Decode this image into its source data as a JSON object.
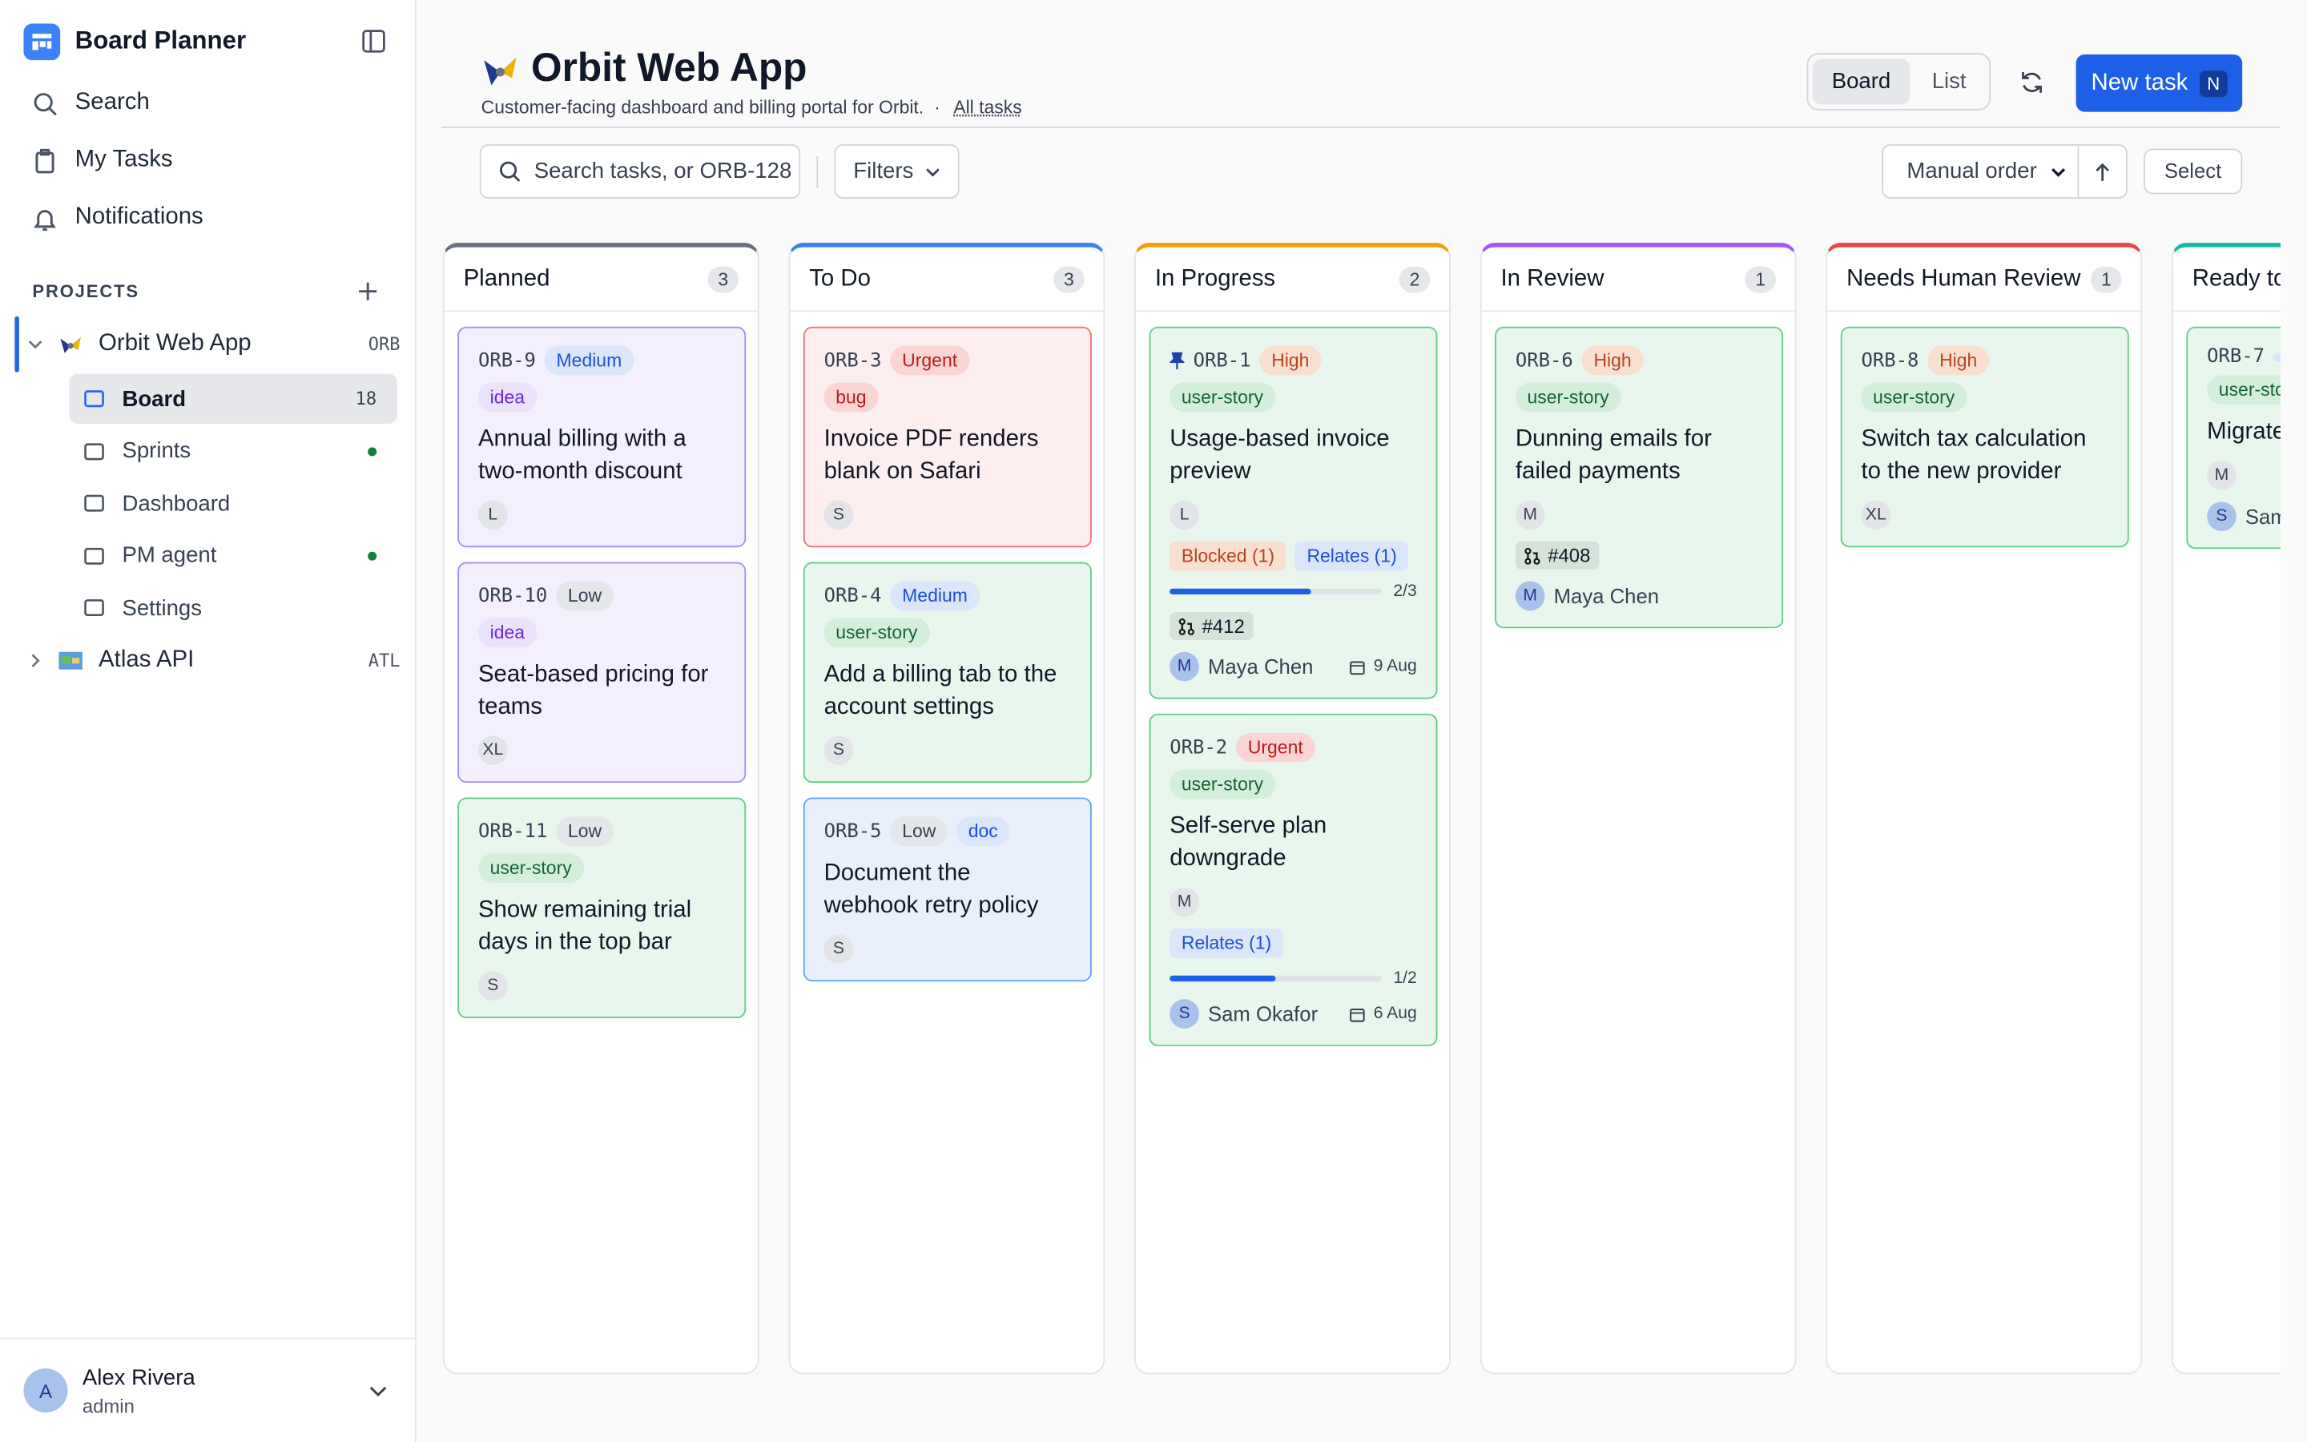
{
  "sidebar": {
    "app_title": "Board Planner",
    "nav": [
      "Search",
      "My Tasks",
      "Notifications"
    ],
    "projects_heading": "PROJECTS",
    "projects": [
      {
        "name": "Orbit Web App",
        "key": "ORB",
        "expanded": true,
        "items": [
          {
            "label": "Board",
            "count": 18,
            "active": true
          },
          {
            "label": "Sprints",
            "dot": true
          },
          {
            "label": "Dashboard"
          },
          {
            "label": "PM agent",
            "dot": true
          },
          {
            "label": "Settings"
          }
        ]
      },
      {
        "name": "Atlas API",
        "key": "ATL",
        "expanded": false
      }
    ],
    "user": {
      "initial": "A",
      "name": "Alex Rivera",
      "role": "admin"
    }
  },
  "header": {
    "title": "Orbit Web App",
    "description": "Customer-facing dashboard and billing portal for Orbit.",
    "separator": "·",
    "link": "All tasks",
    "views": [
      "Board",
      "List"
    ],
    "new_task": "New task",
    "shortcut": "N"
  },
  "toolbar": {
    "search_placeholder": "Search tasks, or ORB-128",
    "filters": "Filters",
    "sort": "Manual order",
    "select": "Select"
  },
  "columns": [
    {
      "title": "Planned",
      "count": 3,
      "color": "#6b7280",
      "cards": [
        {
          "id": "ORB-9",
          "tone": "purple",
          "tags": [
            {
              "text": "Medium",
              "tone": "blue"
            }
          ],
          "labels": [
            {
              "text": "idea",
              "tone": "purple"
            }
          ],
          "title": "Annual billing with a two-month discount",
          "estimate": "L"
        },
        {
          "id": "ORB-10",
          "tone": "purple",
          "tags": [
            {
              "text": "Low",
              "tone": "gray"
            }
          ],
          "labels": [
            {
              "text": "idea",
              "tone": "purple"
            }
          ],
          "title": "Seat-based pricing for teams",
          "estimate": "XL"
        },
        {
          "id": "ORB-11",
          "tone": "green",
          "tags": [
            {
              "text": "Low",
              "tone": "gray"
            }
          ],
          "labels": [
            {
              "text": "user-story",
              "tone": "green"
            }
          ],
          "title": "Show remaining trial days in the top bar",
          "estimate": "S"
        }
      ]
    },
    {
      "title": "To Do",
      "count": 3,
      "color": "#3b82f6",
      "cards": [
        {
          "id": "ORB-3",
          "tone": "red",
          "tags": [
            {
              "text": "Urgent",
              "tone": "red"
            }
          ],
          "labels": [
            {
              "text": "bug",
              "tone": "red"
            }
          ],
          "title": "Invoice PDF renders blank on Safari",
          "estimate": "S"
        },
        {
          "id": "ORB-4",
          "tone": "green",
          "tags": [
            {
              "text": "Medium",
              "tone": "blue"
            }
          ],
          "labels": [
            {
              "text": "user-story",
              "tone": "green"
            }
          ],
          "title": "Add a billing tab to the account settings",
          "estimate": "S"
        },
        {
          "id": "ORB-5",
          "tone": "blue",
          "tags": [
            {
              "text": "Low",
              "tone": "gray"
            },
            {
              "text": "doc",
              "tone": "blue"
            }
          ],
          "labels": [],
          "title": "Document the webhook retry policy",
          "estimate": "S"
        }
      ]
    },
    {
      "title": "In Progress",
      "count": 2,
      "color": "#f59e0b",
      "cards": [
        {
          "id": "ORB-1",
          "pinned": true,
          "tone": "green",
          "tags": [
            {
              "text": "High",
              "tone": "orange"
            }
          ],
          "labels": [
            {
              "text": "user-story",
              "tone": "green"
            }
          ],
          "title": "Usage-based invoice preview",
          "estimate": "L",
          "links": [
            {
              "text": "Blocked (1)",
              "tone": "orange"
            },
            {
              "text": "Relates (1)",
              "tone": "blue"
            }
          ],
          "progress": {
            "value": 2,
            "total": 3,
            "label": "2/3"
          },
          "pr": "#412",
          "assignee": {
            "initial": "M",
            "name": "Maya Chen"
          },
          "due": "9 Aug"
        },
        {
          "id": "ORB-2",
          "tone": "green",
          "tags": [
            {
              "text": "Urgent",
              "tone": "red"
            }
          ],
          "labels": [
            {
              "text": "user-story",
              "tone": "green"
            }
          ],
          "title": "Self-serve plan downgrade",
          "estimate": "M",
          "links": [
            {
              "text": "Relates (1)",
              "tone": "blue"
            }
          ],
          "progress": {
            "value": 1,
            "total": 2,
            "label": "1/2"
          },
          "assignee": {
            "initial": "S",
            "name": "Sam Okafor"
          },
          "due": "6 Aug"
        }
      ]
    },
    {
      "title": "In Review",
      "count": 1,
      "color": "#a855f7",
      "cards": [
        {
          "id": "ORB-6",
          "tone": "green",
          "tags": [
            {
              "text": "High",
              "tone": "orange"
            }
          ],
          "labels": [
            {
              "text": "user-story",
              "tone": "green"
            }
          ],
          "title": "Dunning emails for failed payments",
          "estimate": "M",
          "pr": "#408",
          "assignee": {
            "initial": "M",
            "name": "Maya Chen"
          }
        }
      ]
    },
    {
      "title": "Needs Human Review",
      "count": 1,
      "color": "#ef4444",
      "cards": [
        {
          "id": "ORB-8",
          "tone": "green",
          "tags": [
            {
              "text": "High",
              "tone": "orange"
            }
          ],
          "labels": [
            {
              "text": "user-story",
              "tone": "green"
            }
          ],
          "title": "Switch tax calculation to the new provider",
          "estimate": "XL"
        }
      ]
    },
    {
      "title": "Ready to",
      "color": "#14b8a6",
      "cards": [
        {
          "id": "ORB-7",
          "tone": "green",
          "tags": [
            {
              "text": "",
              "tone": "blue"
            }
          ],
          "labels": [
            {
              "text": "user-story",
              "tone": "green"
            }
          ],
          "title": "Migrate table to",
          "estimate": "M",
          "assignee": {
            "initial": "S",
            "name": "Sam Okafor"
          }
        }
      ]
    }
  ]
}
